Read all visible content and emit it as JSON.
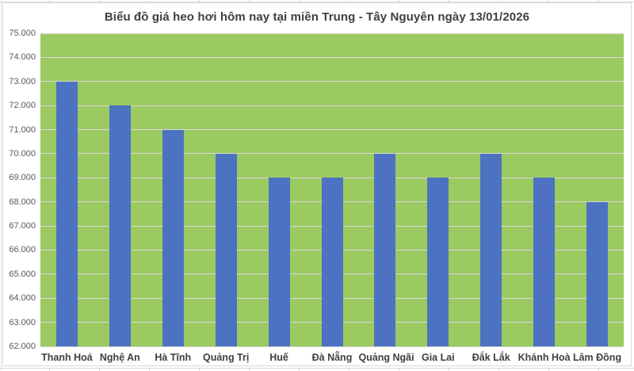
{
  "chart": {
    "colors": {
      "plot_bg": "#9bca61",
      "bar": "#4c72c1",
      "gridline": "#d9d9d9",
      "title_color": "#3f3f3f",
      "ytick_color": "#595959",
      "xtick_color": "#3f3f3f",
      "frame_border": "#d9d9d9",
      "page_bg": "#ffffff"
    }
  },
  "chart_data": {
    "type": "bar",
    "title": "Biểu đồ giá heo hơi hôm nay tại miền Trung - Tây Nguyên ngày 13/01/2026",
    "categories": [
      "Thanh Hoá",
      "Nghệ An",
      "Hà Tĩnh",
      "Quảng Trị",
      "Huế",
      "Đà Nẵng",
      "Quảng Ngãi",
      "Gia Lai",
      "Đắk Lắk",
      "Khánh Hoà",
      "Lâm Đồng"
    ],
    "values": [
      73000,
      72000,
      71000,
      70000,
      69000,
      69000,
      70000,
      69000,
      70000,
      69000,
      68000
    ],
    "xlabel": "",
    "ylabel": "",
    "ylim": [
      62000,
      75000
    ],
    "ytick_step": 1000,
    "ytick_labels": [
      "75.000",
      "74.000",
      "73.000",
      "72.000",
      "71.000",
      "70.000",
      "69.000",
      "68.000",
      "67.000",
      "66.000",
      "65.000",
      "64.000",
      "63.000",
      "62.000"
    ],
    "grid": "horizontal-only",
    "legend": "none",
    "data_labels": "none"
  }
}
